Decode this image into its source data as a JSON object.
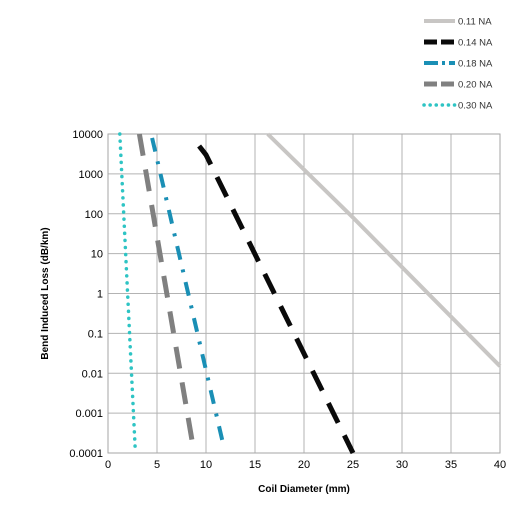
{
  "chart_data": {
    "type": "line",
    "title": "",
    "xlabel": "Coil Diameter (mm)",
    "ylabel": "Bend Induced Loss (dB/km)",
    "xlim": [
      0,
      40
    ],
    "ylim": [
      0.0001,
      10000
    ],
    "yscale": "log",
    "grid": true,
    "legend_position": "top-right",
    "x_ticks": [
      "0",
      "5",
      "10",
      "15",
      "20",
      "25",
      "30",
      "35",
      "40"
    ],
    "y_ticks": [
      "0.0001",
      "0.001",
      "0.01",
      "0.1",
      "1",
      "10",
      "100",
      "1000",
      "10000"
    ],
    "series": [
      {
        "name": "0.11 NA",
        "color": "#c8c6c4",
        "style": "solid",
        "x": [
          16.3,
          25,
          40
        ],
        "y": [
          10000,
          80,
          0.015
        ]
      },
      {
        "name": "0.14 NA",
        "color": "#0a0a0a",
        "style": "dash",
        "x": [
          9.3,
          10,
          25
        ],
        "y": [
          5000,
          3000,
          0.0001
        ]
      },
      {
        "name": "0.18 NA",
        "color": "#1a8fb5",
        "style": "dashdot",
        "x": [
          4.5,
          11.8
        ],
        "y": [
          8000,
          0.00015
        ]
      },
      {
        "name": "0.20 NA",
        "color": "#808080",
        "style": "dash",
        "x": [
          3.2,
          8.8
        ],
        "y": [
          10000,
          0.0001
        ]
      },
      {
        "name": "0.30 NA",
        "color": "#2ec4c4",
        "style": "dot",
        "x": [
          1.2,
          2.8
        ],
        "y": [
          10000,
          0.0001
        ]
      }
    ]
  }
}
